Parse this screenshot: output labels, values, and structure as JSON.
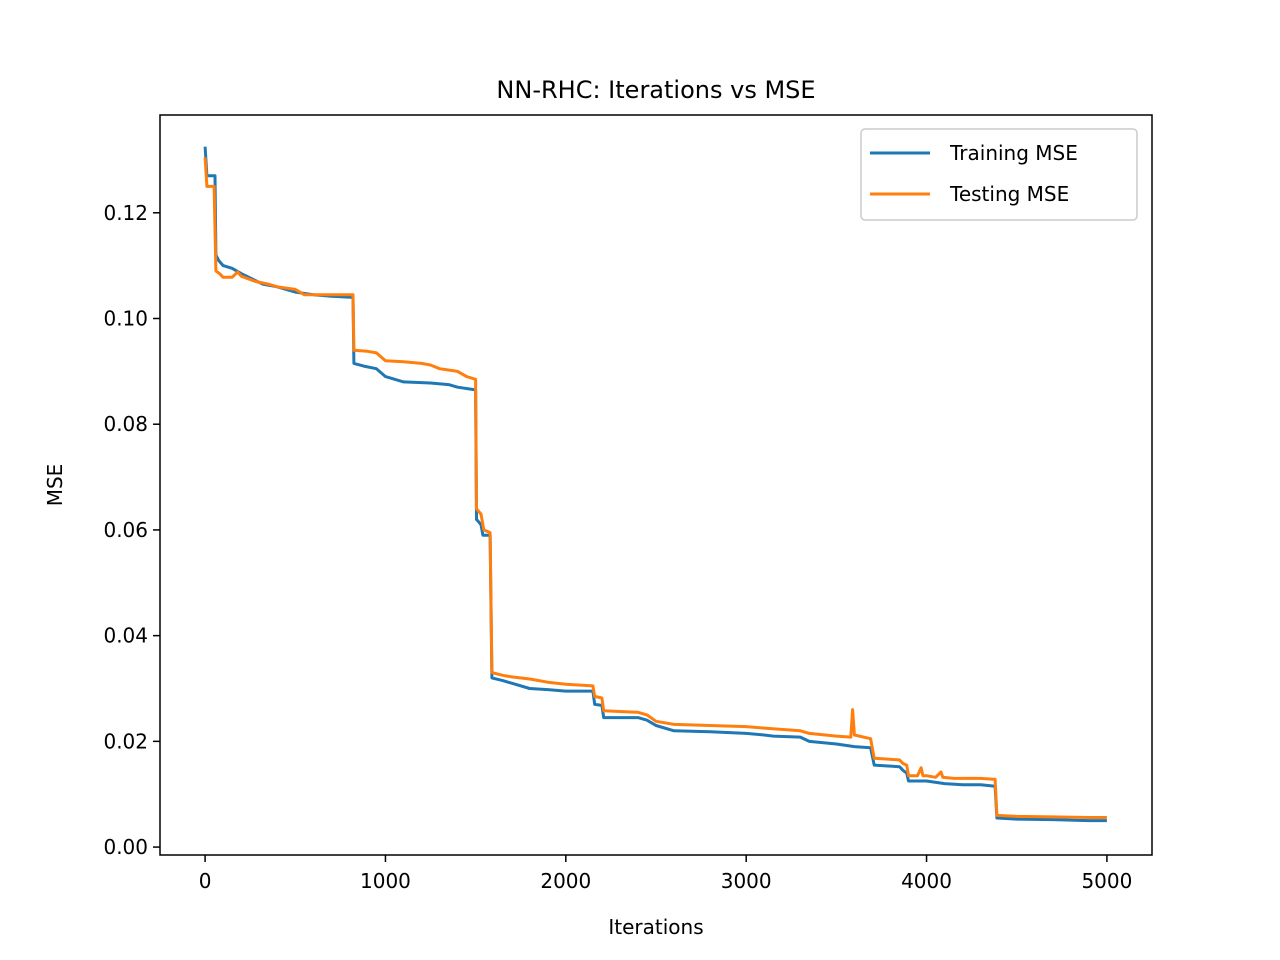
{
  "chart_data": {
    "type": "line",
    "title": "NN-RHC: Iterations vs MSE",
    "xlabel": "Iterations",
    "ylabel": "MSE",
    "xlim": [
      -250,
      5250
    ],
    "ylim": [
      -0.0015,
      0.1385
    ],
    "xticks": [
      0,
      1000,
      2000,
      3000,
      4000,
      5000
    ],
    "xtick_labels": [
      "0",
      "1000",
      "2000",
      "3000",
      "4000",
      "5000"
    ],
    "yticks": [
      0.0,
      0.02,
      0.04,
      0.06,
      0.08,
      0.1,
      0.12
    ],
    "ytick_labels": [
      "0.00",
      "0.02",
      "0.04",
      "0.06",
      "0.08",
      "0.10",
      "0.12"
    ],
    "grid": false,
    "legend": "top-right",
    "series": [
      {
        "name": "Training MSE",
        "color": "#1f77b4",
        "points": [
          [
            0,
            0.1325
          ],
          [
            10,
            0.127
          ],
          [
            55,
            0.127
          ],
          [
            60,
            0.112
          ],
          [
            75,
            0.111
          ],
          [
            100,
            0.11
          ],
          [
            150,
            0.1095
          ],
          [
            200,
            0.1085
          ],
          [
            260,
            0.1075
          ],
          [
            320,
            0.1065
          ],
          [
            400,
            0.106
          ],
          [
            450,
            0.1055
          ],
          [
            500,
            0.105
          ],
          [
            600,
            0.1045
          ],
          [
            700,
            0.1042
          ],
          [
            820,
            0.104
          ],
          [
            825,
            0.0915
          ],
          [
            880,
            0.091
          ],
          [
            950,
            0.0905
          ],
          [
            1000,
            0.089
          ],
          [
            1100,
            0.088
          ],
          [
            1250,
            0.0878
          ],
          [
            1350,
            0.0875
          ],
          [
            1400,
            0.087
          ],
          [
            1500,
            0.0865
          ],
          [
            1505,
            0.062
          ],
          [
            1530,
            0.061
          ],
          [
            1540,
            0.059
          ],
          [
            1580,
            0.059
          ],
          [
            1590,
            0.032
          ],
          [
            1650,
            0.0315
          ],
          [
            1700,
            0.031
          ],
          [
            1800,
            0.03
          ],
          [
            1900,
            0.0298
          ],
          [
            2000,
            0.0295
          ],
          [
            2150,
            0.0295
          ],
          [
            2160,
            0.027
          ],
          [
            2200,
            0.0268
          ],
          [
            2210,
            0.0245
          ],
          [
            2400,
            0.0245
          ],
          [
            2450,
            0.024
          ],
          [
            2500,
            0.023
          ],
          [
            2600,
            0.022
          ],
          [
            2800,
            0.0218
          ],
          [
            3000,
            0.0215
          ],
          [
            3100,
            0.0212
          ],
          [
            3150,
            0.021
          ],
          [
            3300,
            0.0208
          ],
          [
            3350,
            0.02
          ],
          [
            3500,
            0.0195
          ],
          [
            3600,
            0.019
          ],
          [
            3690,
            0.0188
          ],
          [
            3710,
            0.0155
          ],
          [
            3850,
            0.0152
          ],
          [
            3870,
            0.0145
          ],
          [
            3890,
            0.014
          ],
          [
            3900,
            0.0125
          ],
          [
            4000,
            0.0125
          ],
          [
            4100,
            0.012
          ],
          [
            4200,
            0.0118
          ],
          [
            4300,
            0.0118
          ],
          [
            4380,
            0.0115
          ],
          [
            4390,
            0.0055
          ],
          [
            4500,
            0.0053
          ],
          [
            4700,
            0.0052
          ],
          [
            4900,
            0.005
          ],
          [
            5000,
            0.005
          ]
        ]
      },
      {
        "name": "Testing MSE",
        "color": "#ff7f0e",
        "points": [
          [
            0,
            0.1305
          ],
          [
            10,
            0.125
          ],
          [
            50,
            0.125
          ],
          [
            60,
            0.109
          ],
          [
            80,
            0.1085
          ],
          [
            100,
            0.1078
          ],
          [
            150,
            0.1078
          ],
          [
            180,
            0.1088
          ],
          [
            200,
            0.108
          ],
          [
            280,
            0.107
          ],
          [
            350,
            0.1065
          ],
          [
            400,
            0.106
          ],
          [
            500,
            0.1055
          ],
          [
            550,
            0.1045
          ],
          [
            700,
            0.1045
          ],
          [
            820,
            0.1045
          ],
          [
            825,
            0.094
          ],
          [
            900,
            0.0938
          ],
          [
            950,
            0.0935
          ],
          [
            1000,
            0.092
          ],
          [
            1100,
            0.0918
          ],
          [
            1200,
            0.0915
          ],
          [
            1250,
            0.0912
          ],
          [
            1300,
            0.0905
          ],
          [
            1400,
            0.09
          ],
          [
            1450,
            0.089
          ],
          [
            1500,
            0.0885
          ],
          [
            1505,
            0.064
          ],
          [
            1530,
            0.063
          ],
          [
            1545,
            0.06
          ],
          [
            1580,
            0.0595
          ],
          [
            1590,
            0.033
          ],
          [
            1650,
            0.0325
          ],
          [
            1700,
            0.0322
          ],
          [
            1800,
            0.0318
          ],
          [
            1900,
            0.0312
          ],
          [
            2000,
            0.0308
          ],
          [
            2150,
            0.0305
          ],
          [
            2160,
            0.0285
          ],
          [
            2200,
            0.0282
          ],
          [
            2210,
            0.0258
          ],
          [
            2400,
            0.0255
          ],
          [
            2450,
            0.025
          ],
          [
            2500,
            0.0238
          ],
          [
            2600,
            0.0232
          ],
          [
            2800,
            0.023
          ],
          [
            3000,
            0.0228
          ],
          [
            3100,
            0.0225
          ],
          [
            3300,
            0.022
          ],
          [
            3350,
            0.0215
          ],
          [
            3500,
            0.021
          ],
          [
            3580,
            0.0208
          ],
          [
            3590,
            0.026
          ],
          [
            3600,
            0.0212
          ],
          [
            3690,
            0.0205
          ],
          [
            3710,
            0.0168
          ],
          [
            3850,
            0.0165
          ],
          [
            3870,
            0.0158
          ],
          [
            3890,
            0.0155
          ],
          [
            3900,
            0.0135
          ],
          [
            3950,
            0.0135
          ],
          [
            3970,
            0.015
          ],
          [
            3980,
            0.0135
          ],
          [
            4000,
            0.0135
          ],
          [
            4050,
            0.0132
          ],
          [
            4080,
            0.0142
          ],
          [
            4090,
            0.0132
          ],
          [
            4150,
            0.013
          ],
          [
            4300,
            0.013
          ],
          [
            4380,
            0.0128
          ],
          [
            4390,
            0.006
          ],
          [
            4500,
            0.0058
          ],
          [
            4700,
            0.0057
          ],
          [
            4900,
            0.0056
          ],
          [
            5000,
            0.0056
          ]
        ]
      }
    ]
  }
}
